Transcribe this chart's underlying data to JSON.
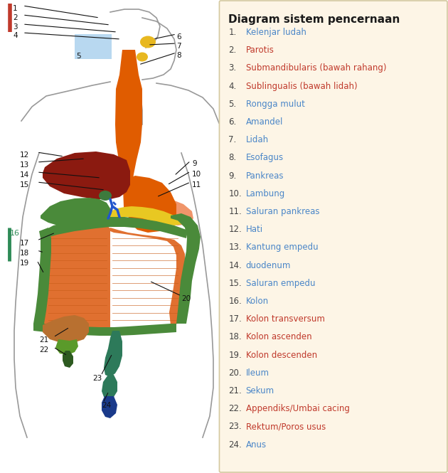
{
  "title": "Diagram sistem pencernaan",
  "background_color": "#fdf5e6",
  "legend_bg": "#fdf5e6",
  "legend_border": "#d4c9a0",
  "items": [
    {
      "num": 1,
      "text": "Kelenjar ludah",
      "color": "#4a86c8"
    },
    {
      "num": 2,
      "text": "Parotis",
      "color": "#c0392b"
    },
    {
      "num": 3,
      "text": "Submandibularis (bawah rahang)",
      "color": "#c0392b"
    },
    {
      "num": 4,
      "text": "Sublingualis (bawah lidah)",
      "color": "#c0392b"
    },
    {
      "num": 5,
      "text": "Rongga mulut",
      "color": "#4a86c8"
    },
    {
      "num": 6,
      "text": "Amandel",
      "color": "#4a86c8"
    },
    {
      "num": 7,
      "text": "Lidah",
      "color": "#4a86c8"
    },
    {
      "num": 8,
      "text": "Esofagus",
      "color": "#4a86c8"
    },
    {
      "num": 9,
      "text": "Pankreas",
      "color": "#4a86c8"
    },
    {
      "num": 10,
      "text": "Lambung",
      "color": "#4a86c8"
    },
    {
      "num": 11,
      "text": "Saluran pankreas",
      "color": "#4a86c8"
    },
    {
      "num": 12,
      "text": "Hati",
      "color": "#4a86c8"
    },
    {
      "num": 13,
      "text": "Kantung empedu",
      "color": "#4a86c8"
    },
    {
      "num": 14,
      "text": "duodenum",
      "color": "#4a86c8"
    },
    {
      "num": 15,
      "text": "Saluran empedu",
      "color": "#4a86c8"
    },
    {
      "num": 16,
      "text": "Kolon",
      "color": "#4a86c8"
    },
    {
      "num": 17,
      "text": "Kolon transversum",
      "color": "#c0392b"
    },
    {
      "num": 18,
      "text": "Kolon ascenden",
      "color": "#c0392b"
    },
    {
      "num": 19,
      "text": "Kolon descenden",
      "color": "#c0392b"
    },
    {
      "num": 20,
      "text": "Ileum",
      "color": "#4a86c8"
    },
    {
      "num": 21,
      "text": "Sekum",
      "color": "#4a86c8"
    },
    {
      "num": 22,
      "text": "Appendiks/Umbai cacing",
      "color": "#c0392b"
    },
    {
      "num": 23,
      "text": "Rektum/Poros usus",
      "color": "#c0392b"
    },
    {
      "num": 24,
      "text": "Anus",
      "color": "#4a86c8"
    }
  ],
  "title_color": "#1a1a1a",
  "num_color": "#444444",
  "colors": {
    "esofagus": "#e05c00",
    "stomach": "#e05c00",
    "pankreas": "#f0956a",
    "liver": "#8b1a10",
    "empedu_kantung": "#3d7a3d",
    "yellow_band": "#e8c822",
    "kolon_green": "#4a8a3a",
    "ileum": "#e07030",
    "ileum_line": "#c85c18",
    "sekum": "#b87030",
    "sekum_green": "#5a9a2a",
    "appendiks": "#2d5a20",
    "rectum": "#2d7a5a",
    "anus_top": "#2d7a5a",
    "anus_bot": "#1a3a8a",
    "mouth_box": "#b8d8f0",
    "tonsil": "#e8b820",
    "head_outline": "#999999",
    "body_outline": "#999999",
    "blue_vessel": "#2255cc",
    "annot_line": "#111111",
    "red_bar": "#c0392b",
    "green_bar": "#2e8b57"
  }
}
